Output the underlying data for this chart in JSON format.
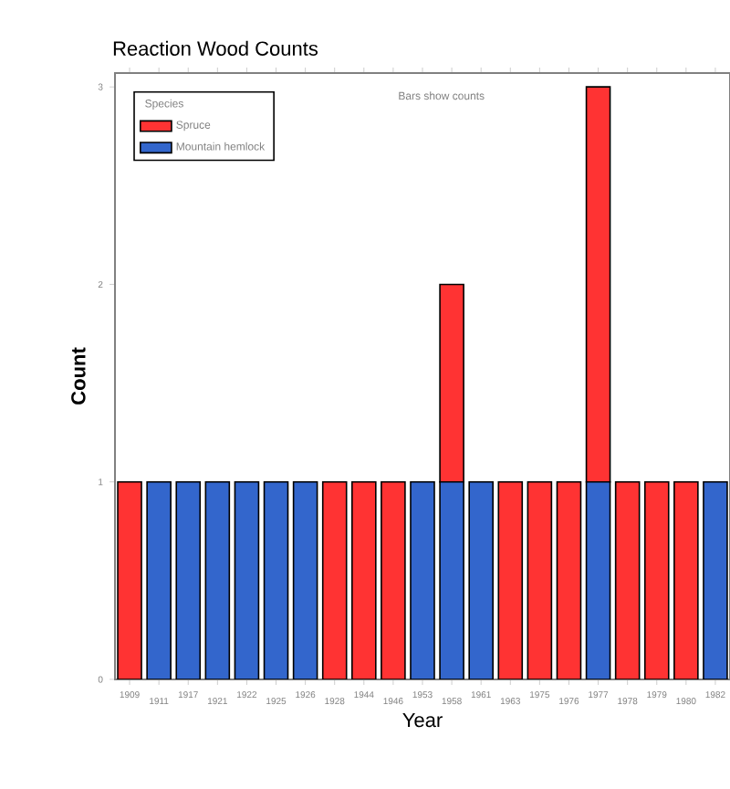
{
  "chart_data": {
    "type": "bar",
    "title": "Reaction Wood Counts",
    "xlabel": "Year",
    "ylabel": "Count",
    "legend_title": "Species",
    "categories": [
      "1909",
      "1911",
      "1917",
      "1921",
      "1922",
      "1925",
      "1926",
      "1928",
      "1944",
      "1946",
      "1953",
      "1958",
      "1961",
      "1963",
      "1975",
      "1976",
      "1977",
      "1978",
      "1979",
      "1980",
      "1982"
    ],
    "stacked": true,
    "series": [
      {
        "name": "Mountain hemlock",
        "color": "#3366cc",
        "values": [
          null,
          1,
          1,
          1,
          1,
          1,
          1,
          null,
          null,
          null,
          1,
          1,
          1,
          null,
          null,
          null,
          1,
          null,
          null,
          null,
          1
        ]
      },
      {
        "name": "Spruce",
        "color": "#ff3333",
        "values": [
          1,
          null,
          null,
          null,
          null,
          null,
          null,
          1,
          1,
          1,
          null,
          1,
          null,
          1,
          1,
          1,
          2,
          1,
          1,
          1,
          null
        ]
      }
    ],
    "ylim": [
      0,
      3.07
    ],
    "yticks": [
      0,
      1,
      2,
      3
    ],
    "legend": "top left",
    "grid": false,
    "annotations": [
      "Bars show counts"
    ]
  }
}
